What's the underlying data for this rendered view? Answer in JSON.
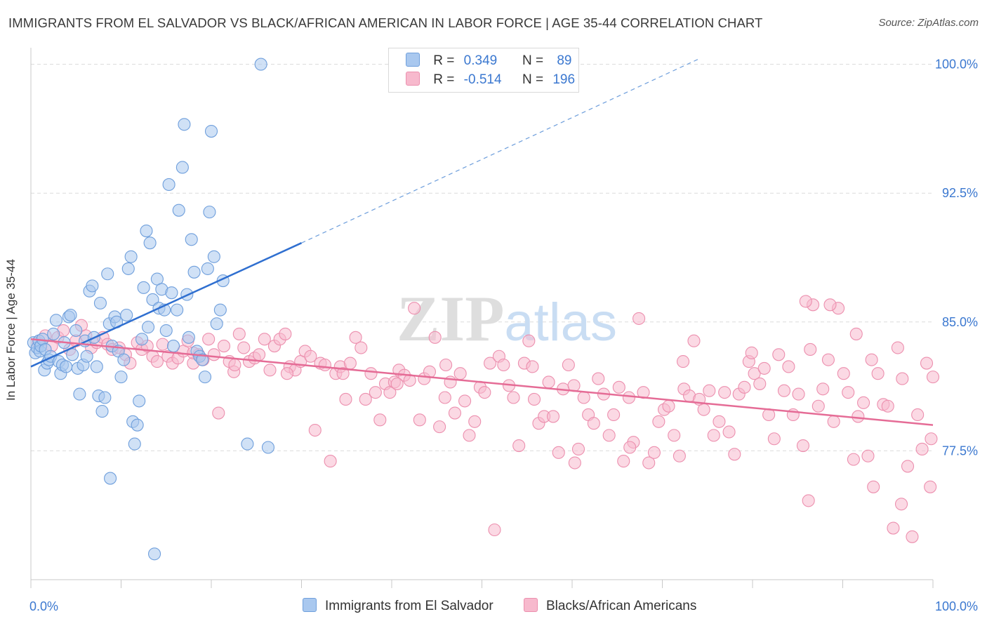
{
  "title": "IMMIGRANTS FROM EL SALVADOR VS BLACK/AFRICAN AMERICAN IN LABOR FORCE | AGE 35-44 CORRELATION CHART",
  "source": "Source: ZipAtlas.com",
  "watermark": "ZIPatlas",
  "legend": {
    "series1": {
      "r_label": "R =",
      "r_value": "0.349",
      "n_label": "N =",
      "n_value": "89"
    },
    "series2": {
      "r_label": "R =",
      "r_value": "-0.514",
      "n_label": "N =",
      "n_value": "196"
    }
  },
  "bottom_legend": {
    "series1": "Immigrants from El Salvador",
    "series2": "Blacks/African Americans"
  },
  "colors": {
    "blue_fill": "#a9c8ef",
    "blue_stroke": "#6f9fdc",
    "blue_line": "#2f6fd0",
    "pink_fill": "#f7b9cd",
    "pink_stroke": "#ec8fae",
    "pink_line": "#e56c96",
    "axis_text": "#3b78d0",
    "grid": "#dcdcdc"
  },
  "chart_data": {
    "type": "scatter",
    "title": "IMMIGRANTS FROM EL SALVADOR VS BLACK/AFRICAN AMERICAN IN LABOR FORCE | AGE 35-44 CORRELATION CHART",
    "xlabel": "",
    "ylabel": "In Labor Force | Age 35-44",
    "xlim": [
      0,
      100
    ],
    "ylim": [
      70.0,
      100.8
    ],
    "x_tick_labels": [
      "0.0%",
      "100.0%"
    ],
    "y_ticks": [
      77.5,
      85.0,
      92.5,
      100.0
    ],
    "y_tick_labels": [
      "77.5%",
      "85.0%",
      "92.5%",
      "100.0%"
    ],
    "grid": true,
    "legend_position": "top-center",
    "series": [
      {
        "name": "Immigrants from El Salvador",
        "r": 0.349,
        "n": 89,
        "trend": {
          "x": [
            0,
            30
          ],
          "y": [
            82.4,
            89.6
          ],
          "dashed_extension": {
            "x": [
              30,
              74
            ],
            "y": [
              89.6,
              100.3
            ]
          }
        },
        "points": [
          [
            0.3,
            83.8
          ],
          [
            0.5,
            83.2
          ],
          [
            0.7,
            83.5
          ],
          [
            0.9,
            83.9
          ],
          [
            1.0,
            83.3
          ],
          [
            1.1,
            83.6
          ],
          [
            1.3,
            84.0
          ],
          [
            1.5,
            82.2
          ],
          [
            1.6,
            83.4
          ],
          [
            1.8,
            82.6
          ],
          [
            2.0,
            82.8
          ],
          [
            2.2,
            83.0
          ],
          [
            2.5,
            84.3
          ],
          [
            2.8,
            85.1
          ],
          [
            3.1,
            82.7
          ],
          [
            3.3,
            82.0
          ],
          [
            3.5,
            82.5
          ],
          [
            3.7,
            83.8
          ],
          [
            3.9,
            82.4
          ],
          [
            4.2,
            85.3
          ],
          [
            4.4,
            85.4
          ],
          [
            4.6,
            83.1
          ],
          [
            5.0,
            84.5
          ],
          [
            5.2,
            82.3
          ],
          [
            5.4,
            80.8
          ],
          [
            5.8,
            82.5
          ],
          [
            6.0,
            83.9
          ],
          [
            6.2,
            83.0
          ],
          [
            6.5,
            86.8
          ],
          [
            6.8,
            87.1
          ],
          [
            7.0,
            84.1
          ],
          [
            7.3,
            82.4
          ],
          [
            7.5,
            80.7
          ],
          [
            7.7,
            86.1
          ],
          [
            7.9,
            79.8
          ],
          [
            8.2,
            80.6
          ],
          [
            8.5,
            87.8
          ],
          [
            8.7,
            84.9
          ],
          [
            9.0,
            83.6
          ],
          [
            9.3,
            85.3
          ],
          [
            9.5,
            85.0
          ],
          [
            9.7,
            83.3
          ],
          [
            10.0,
            81.8
          ],
          [
            10.3,
            82.8
          ],
          [
            10.6,
            85.4
          ],
          [
            10.8,
            88.1
          ],
          [
            11.1,
            88.8
          ],
          [
            11.3,
            79.2
          ],
          [
            11.5,
            77.9
          ],
          [
            11.8,
            79.0
          ],
          [
            12.0,
            80.4
          ],
          [
            12.3,
            84.0
          ],
          [
            12.5,
            87.0
          ],
          [
            12.8,
            90.3
          ],
          [
            13.0,
            84.7
          ],
          [
            13.2,
            89.6
          ],
          [
            13.5,
            86.3
          ],
          [
            13.7,
            71.5
          ],
          [
            14.0,
            87.5
          ],
          [
            14.2,
            85.8
          ],
          [
            14.5,
            86.9
          ],
          [
            14.8,
            85.7
          ],
          [
            15.0,
            84.5
          ],
          [
            15.3,
            93.0
          ],
          [
            15.6,
            86.7
          ],
          [
            15.8,
            83.6
          ],
          [
            16.2,
            85.7
          ],
          [
            16.4,
            91.5
          ],
          [
            16.8,
            94.0
          ],
          [
            17.0,
            96.5
          ],
          [
            17.3,
            86.6
          ],
          [
            17.5,
            84.1
          ],
          [
            17.8,
            89.8
          ],
          [
            18.1,
            87.9
          ],
          [
            18.4,
            83.3
          ],
          [
            18.7,
            83.0
          ],
          [
            19.0,
            82.8
          ],
          [
            19.3,
            81.8
          ],
          [
            19.6,
            88.1
          ],
          [
            19.8,
            91.4
          ],
          [
            20.0,
            96.1
          ],
          [
            20.3,
            88.8
          ],
          [
            20.6,
            84.9
          ],
          [
            21.0,
            85.7
          ],
          [
            21.3,
            87.4
          ],
          [
            8.8,
            75.9
          ],
          [
            24.0,
            77.9
          ],
          [
            25.5,
            100.0
          ],
          [
            26.3,
            77.7
          ]
        ]
      },
      {
        "name": "Blacks/African Americans",
        "r": -0.514,
        "n": 196,
        "trend": {
          "x": [
            0,
            100
          ],
          "y": [
            84.0,
            79.0
          ]
        },
        "points": [
          [
            0.8,
            83.8
          ],
          [
            1.6,
            84.2
          ],
          [
            2.3,
            83.6
          ],
          [
            3.0,
            84.1
          ],
          [
            3.6,
            84.5
          ],
          [
            4.3,
            83.4
          ],
          [
            5.0,
            83.9
          ],
          [
            5.6,
            84.8
          ],
          [
            6.1,
            84.2
          ],
          [
            6.7,
            83.5
          ],
          [
            7.3,
            83.8
          ],
          [
            8.0,
            84.1
          ],
          [
            8.5,
            83.7
          ],
          [
            9.0,
            83.4
          ],
          [
            9.8,
            83.5
          ],
          [
            10.5,
            83.1
          ],
          [
            11.0,
            82.6
          ],
          [
            11.8,
            83.8
          ],
          [
            12.3,
            83.4
          ],
          [
            12.9,
            83.6
          ],
          [
            13.5,
            83.0
          ],
          [
            14.0,
            82.7
          ],
          [
            14.6,
            83.7
          ],
          [
            15.2,
            83.0
          ],
          [
            15.7,
            82.6
          ],
          [
            16.3,
            82.9
          ],
          [
            16.9,
            83.3
          ],
          [
            17.4,
            83.9
          ],
          [
            18.0,
            82.6
          ],
          [
            18.6,
            83.1
          ],
          [
            19.1,
            82.8
          ],
          [
            19.7,
            84.0
          ],
          [
            20.3,
            83.1
          ],
          [
            20.8,
            79.7
          ],
          [
            21.4,
            83.6
          ],
          [
            22.0,
            82.7
          ],
          [
            22.5,
            82.1
          ],
          [
            23.1,
            84.3
          ],
          [
            23.6,
            83.5
          ],
          [
            24.2,
            82.7
          ],
          [
            24.8,
            82.9
          ],
          [
            25.3,
            83.1
          ],
          [
            25.9,
            84.0
          ],
          [
            26.5,
            82.2
          ],
          [
            27.0,
            83.6
          ],
          [
            27.6,
            84.0
          ],
          [
            28.2,
            84.3
          ],
          [
            28.7,
            82.4
          ],
          [
            29.3,
            82.2
          ],
          [
            29.9,
            82.7
          ],
          [
            30.4,
            83.3
          ],
          [
            31.0,
            83.0
          ],
          [
            31.5,
            78.7
          ],
          [
            32.1,
            82.6
          ],
          [
            32.6,
            82.5
          ],
          [
            33.2,
            76.9
          ],
          [
            33.8,
            82.0
          ],
          [
            34.3,
            82.4
          ],
          [
            34.9,
            80.5
          ],
          [
            35.4,
            82.6
          ],
          [
            36.0,
            84.1
          ],
          [
            36.6,
            83.5
          ],
          [
            37.1,
            80.5
          ],
          [
            37.7,
            82.0
          ],
          [
            38.2,
            80.9
          ],
          [
            38.7,
            79.3
          ],
          [
            39.3,
            81.4
          ],
          [
            39.8,
            80.9
          ],
          [
            40.3,
            81.5
          ],
          [
            40.8,
            82.2
          ],
          [
            41.4,
            81.9
          ],
          [
            42.0,
            81.6
          ],
          [
            42.5,
            85.8
          ],
          [
            43.1,
            79.3
          ],
          [
            43.6,
            81.7
          ],
          [
            44.2,
            82.1
          ],
          [
            44.8,
            84.1
          ],
          [
            45.3,
            78.9
          ],
          [
            45.9,
            80.6
          ],
          [
            46.5,
            81.5
          ],
          [
            47.0,
            79.7
          ],
          [
            47.6,
            82.0
          ],
          [
            48.1,
            80.4
          ],
          [
            48.6,
            78.4
          ],
          [
            49.2,
            79.2
          ],
          [
            49.8,
            81.2
          ],
          [
            50.3,
            80.9
          ],
          [
            50.9,
            82.6
          ],
          [
            51.4,
            72.9
          ],
          [
            51.9,
            83.0
          ],
          [
            52.4,
            82.5
          ],
          [
            53.0,
            81.3
          ],
          [
            53.5,
            80.6
          ],
          [
            54.1,
            77.8
          ],
          [
            54.7,
            82.6
          ],
          [
            55.2,
            83.9
          ],
          [
            55.8,
            80.5
          ],
          [
            56.3,
            79.1
          ],
          [
            56.9,
            79.5
          ],
          [
            57.4,
            81.5
          ],
          [
            57.9,
            79.5
          ],
          [
            58.5,
            77.4
          ],
          [
            59.0,
            81.1
          ],
          [
            59.6,
            82.5
          ],
          [
            60.2,
            81.3
          ],
          [
            60.7,
            77.6
          ],
          [
            61.3,
            80.6
          ],
          [
            61.8,
            79.6
          ],
          [
            62.4,
            79.1
          ],
          [
            62.9,
            81.7
          ],
          [
            63.5,
            80.8
          ],
          [
            64.1,
            78.4
          ],
          [
            64.6,
            79.6
          ],
          [
            65.2,
            81.2
          ],
          [
            65.7,
            76.9
          ],
          [
            66.3,
            80.6
          ],
          [
            66.8,
            78.0
          ],
          [
            67.4,
            85.2
          ],
          [
            67.9,
            80.9
          ],
          [
            68.5,
            76.8
          ],
          [
            69.1,
            77.4
          ],
          [
            69.6,
            79.2
          ],
          [
            70.2,
            79.9
          ],
          [
            70.7,
            80.1
          ],
          [
            71.3,
            78.4
          ],
          [
            71.9,
            77.2
          ],
          [
            72.4,
            81.1
          ],
          [
            73.0,
            80.7
          ],
          [
            73.5,
            83.9
          ],
          [
            74.1,
            80.5
          ],
          [
            74.6,
            79.9
          ],
          [
            75.2,
            81.0
          ],
          [
            75.7,
            78.4
          ],
          [
            76.3,
            79.2
          ],
          [
            76.9,
            80.9
          ],
          [
            77.4,
            78.6
          ],
          [
            78.0,
            77.3
          ],
          [
            78.5,
            80.8
          ],
          [
            79.1,
            81.2
          ],
          [
            79.6,
            82.7
          ],
          [
            80.2,
            82.0
          ],
          [
            80.8,
            81.4
          ],
          [
            81.3,
            82.3
          ],
          [
            81.8,
            79.6
          ],
          [
            82.4,
            78.2
          ],
          [
            82.9,
            83.1
          ],
          [
            83.5,
            81.0
          ],
          [
            84.0,
            82.4
          ],
          [
            84.5,
            79.6
          ],
          [
            85.1,
            80.8
          ],
          [
            85.6,
            77.8
          ],
          [
            86.2,
            74.6
          ],
          [
            86.7,
            86.0
          ],
          [
            87.3,
            80.1
          ],
          [
            87.8,
            81.1
          ],
          [
            88.4,
            82.8
          ],
          [
            89.0,
            79.2
          ],
          [
            89.5,
            85.8
          ],
          [
            90.1,
            82.0
          ],
          [
            90.6,
            80.9
          ],
          [
            91.2,
            77.0
          ],
          [
            91.7,
            79.5
          ],
          [
            92.3,
            80.3
          ],
          [
            92.8,
            77.2
          ],
          [
            93.4,
            75.4
          ],
          [
            93.9,
            82.0
          ],
          [
            94.5,
            80.2
          ],
          [
            95.0,
            80.1
          ],
          [
            95.6,
            73.0
          ],
          [
            96.1,
            83.5
          ],
          [
            96.6,
            81.7
          ],
          [
            97.2,
            76.6
          ],
          [
            97.7,
            72.5
          ],
          [
            98.3,
            79.6
          ],
          [
            98.8,
            77.6
          ],
          [
            99.3,
            82.6
          ],
          [
            99.8,
            78.2
          ],
          [
            100.0,
            81.8
          ],
          [
            85.9,
            86.2
          ],
          [
            88.6,
            86.0
          ],
          [
            91.5,
            84.3
          ],
          [
            93.2,
            82.8
          ],
          [
            72.3,
            82.7
          ],
          [
            55.6,
            82.4
          ],
          [
            46.0,
            82.5
          ],
          [
            40.6,
            81.4
          ],
          [
            34.6,
            82.0
          ],
          [
            28.4,
            82.0
          ],
          [
            22.6,
            82.5
          ],
          [
            18.0,
            83.2
          ],
          [
            66.4,
            77.7
          ],
          [
            60.3,
            76.8
          ],
          [
            86.4,
            83.4
          ],
          [
            79.9,
            83.2
          ],
          [
            99.7,
            75.4
          ],
          [
            96.5,
            74.4
          ]
        ]
      }
    ]
  }
}
